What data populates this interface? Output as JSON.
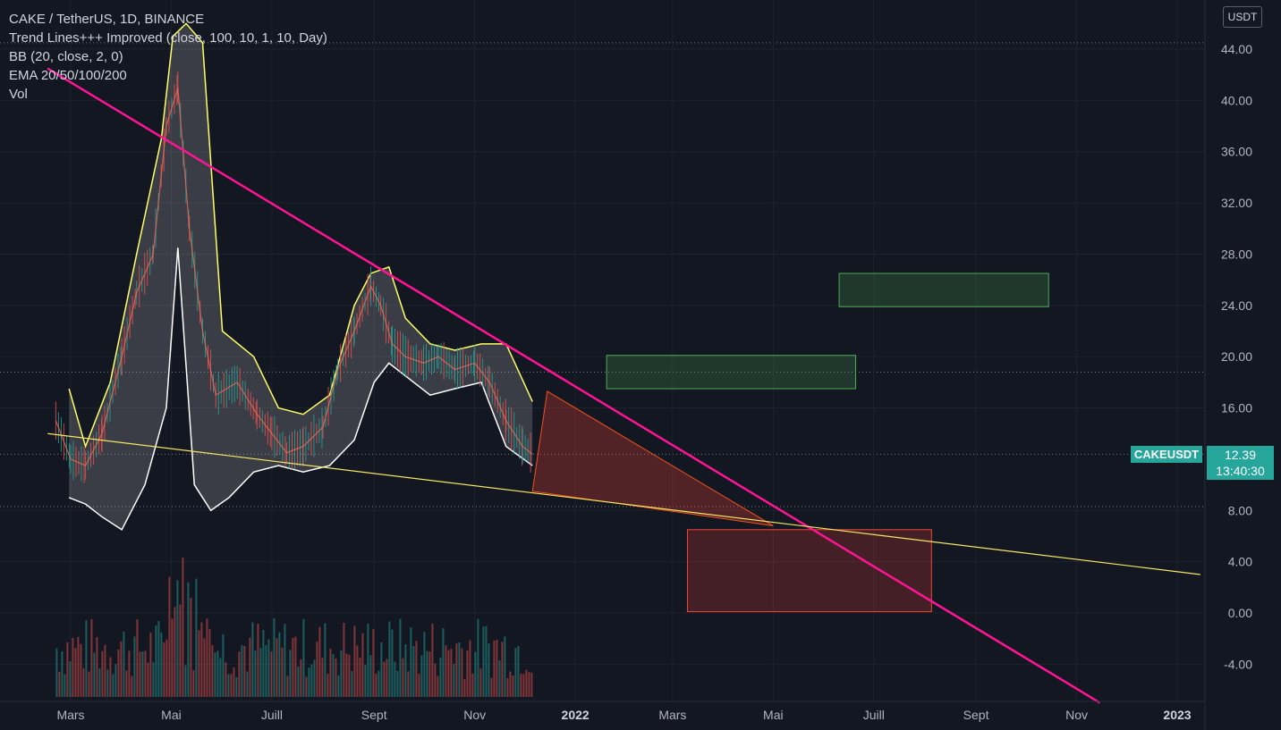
{
  "header": {
    "title": "CAKE / TetherUS, 1D, BINANCE",
    "indicators": [
      "Trend Lines+++ Improved (close, 100, 10, 1, 10, Day)",
      "BB (20, close, 2, 0)",
      "EMA 20/50/100/200",
      "Vol"
    ]
  },
  "currency_button": "USDT",
  "price_badge": {
    "symbol": "CAKEUSDT",
    "price": "12.39",
    "countdown": "13:40:30"
  },
  "colors": {
    "background": "#131722",
    "trendline_pink": "#ff1493",
    "trendline_yellow": "#f5e663",
    "bb_band": "#ffff66",
    "bb_lower": "#ffffff",
    "green_zone": "#4caf50",
    "red_zone": "#f44336",
    "up_candle": "#26a69a",
    "down_candle": "#ef5350",
    "badge": "#26a69a"
  },
  "chart_data": {
    "type": "line",
    "title": "CAKE / TetherUS, 1D, BINANCE",
    "y_axis": {
      "ticks": [
        "44.00",
        "40.00",
        "36.00",
        "32.00",
        "28.00",
        "24.00",
        "20.00",
        "16.00",
        "8.00",
        "4.00",
        "0.00",
        "-4.00"
      ],
      "tick_values": [
        44,
        40,
        36,
        32,
        28,
        24,
        20,
        16,
        8,
        4,
        0,
        -4
      ],
      "ylim": [
        -6.5,
        46.5
      ]
    },
    "x_axis": {
      "ticks": [
        {
          "label": "Mars",
          "date": "2021-03-01"
        },
        {
          "label": "Mai",
          "date": "2021-05-01"
        },
        {
          "label": "Juill",
          "date": "2021-07-01"
        },
        {
          "label": "Sept",
          "date": "2021-09-01"
        },
        {
          "label": "Nov",
          "date": "2021-11-01"
        },
        {
          "label": "2022",
          "date": "2022-01-01",
          "year": true
        },
        {
          "label": "Mars",
          "date": "2022-03-01"
        },
        {
          "label": "Mai",
          "date": "2022-05-01"
        },
        {
          "label": "Juill",
          "date": "2022-07-01"
        },
        {
          "label": "Sept",
          "date": "2022-09-01"
        },
        {
          "label": "Nov",
          "date": "2022-11-01"
        },
        {
          "label": "2023",
          "date": "2023-01-01",
          "year": true
        }
      ]
    },
    "price_series": {
      "name": "CAKEUSDT",
      "x": [
        "2021-02-20",
        "2021-03-01",
        "2021-03-10",
        "2021-03-20",
        "2021-04-01",
        "2021-04-10",
        "2021-04-20",
        "2021-04-28",
        "2021-05-05",
        "2021-05-12",
        "2021-05-20",
        "2021-05-28",
        "2021-06-10",
        "2021-06-22",
        "2021-07-01",
        "2021-07-10",
        "2021-07-20",
        "2021-08-01",
        "2021-08-10",
        "2021-08-20",
        "2021-08-30",
        "2021-09-05",
        "2021-09-12",
        "2021-09-20",
        "2021-10-01",
        "2021-10-10",
        "2021-10-20",
        "2021-11-01",
        "2021-11-10",
        "2021-11-20",
        "2021-11-30",
        "2021-12-06"
      ],
      "y": [
        15.0,
        12.0,
        11.5,
        14.0,
        20.0,
        25.0,
        28.0,
        38.0,
        41.0,
        30.0,
        22.0,
        17.0,
        18.0,
        15.5,
        14.0,
        12.5,
        13.0,
        14.5,
        19.0,
        22.0,
        25.5,
        24.0,
        21.0,
        20.0,
        19.5,
        20.0,
        19.0,
        19.5,
        18.0,
        15.0,
        13.0,
        12.39
      ]
    },
    "bb_upper": {
      "x": [
        "2021-02-28",
        "2021-03-10",
        "2021-03-25",
        "2021-04-10",
        "2021-04-25",
        "2021-05-02",
        "2021-05-10",
        "2021-05-20",
        "2021-06-01",
        "2021-06-20",
        "2021-07-05",
        "2021-07-20",
        "2021-08-05",
        "2021-08-20",
        "2021-08-30",
        "2021-09-10",
        "2021-09-20",
        "2021-10-05",
        "2021-10-20",
        "2021-11-05",
        "2021-11-20",
        "2021-12-06"
      ],
      "y": [
        17.5,
        13.0,
        18.0,
        28.0,
        37.0,
        45.0,
        46.0,
        44.5,
        22.0,
        20.0,
        16.0,
        15.5,
        17.0,
        24.0,
        26.5,
        27.0,
        23.0,
        21.0,
        20.5,
        21.0,
        21.0,
        16.5
      ]
    },
    "bb_lower": {
      "x": [
        "2021-02-28",
        "2021-03-10",
        "2021-03-20",
        "2021-04-01",
        "2021-04-15",
        "2021-04-28",
        "2021-05-05",
        "2021-05-15",
        "2021-05-25",
        "2021-06-05",
        "2021-06-20",
        "2021-07-05",
        "2021-07-20",
        "2021-08-05",
        "2021-08-20",
        "2021-09-01",
        "2021-09-10",
        "2021-09-20",
        "2021-10-05",
        "2021-10-20",
        "2021-11-05",
        "2021-11-20",
        "2021-12-06"
      ],
      "y": [
        9.0,
        8.5,
        7.5,
        6.5,
        10.0,
        16.0,
        28.5,
        10.0,
        8.0,
        9.0,
        11.0,
        11.5,
        11.0,
        11.5,
        13.5,
        18.0,
        19.5,
        18.5,
        17.0,
        17.5,
        18.0,
        13.0,
        11.5
      ]
    },
    "trendlines": [
      {
        "name": "descending",
        "from": {
          "x": "2021-02-15",
          "y": 42.5
        },
        "to": {
          "x": "2022-11-15",
          "y": -7.0
        }
      },
      {
        "name": "ascending_support",
        "from": {
          "x": "2021-02-15",
          "y": 14.0
        },
        "to": {
          "x": "2023-01-15",
          "y": 3.0
        }
      }
    ],
    "zones": [
      {
        "name": "green-zone-upper",
        "type": "resistance",
        "x0": "2022-06-10",
        "x1": "2022-10-15",
        "y0": 23.9,
        "y1": 26.5
      },
      {
        "name": "green-zone-lower",
        "type": "resistance",
        "x0": "2022-01-20",
        "x1": "2022-06-20",
        "y0": 17.5,
        "y1": 20.1
      },
      {
        "name": "red-zone-target",
        "type": "support",
        "x0": "2022-03-10",
        "x1": "2022-08-05",
        "y0": 0.1,
        "y1": 6.5
      }
    ],
    "red_triangle": [
      {
        "x": "2021-12-06",
        "y": 9.5
      },
      {
        "x": "2021-12-15",
        "y": 17.3
      },
      {
        "x": "2022-05-01",
        "y": 6.8
      }
    ],
    "current_price": 12.39
  }
}
